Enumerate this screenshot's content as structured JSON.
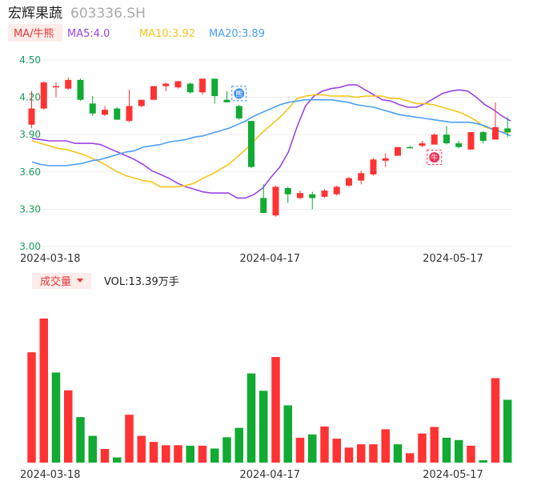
{
  "header": {
    "name": "宏辉果蔬",
    "code": "603336.SH"
  },
  "indicator_bar": {
    "ma_label": "MA/牛熊",
    "ma5": "MA5:4.0",
    "ma10": "MA10:3.92",
    "ma20": "MA20:3.89"
  },
  "volume_bar": {
    "label": "成交量",
    "vol": "VOL:13.39万手"
  },
  "colors": {
    "up": "#ff3333",
    "down": "#11aa33",
    "ma5": "#9b44e6",
    "ma10": "#f5c518",
    "ma20": "#4a9ff5",
    "axis_text": "#1a9a5a",
    "grid": "#eeeeee"
  },
  "chart_data": [
    {
      "type": "candlestick",
      "title": "",
      "ylim": [
        3.0,
        4.5
      ],
      "yticks": [
        "4.50",
        "4.20",
        "3.90",
        "3.60",
        "3.30",
        "3.00"
      ],
      "x_tick_labels": [
        "2024-03-18",
        "2024-04-17",
        "2024-05-17"
      ],
      "x_tick_index": [
        1,
        19,
        34
      ],
      "markers": [
        {
          "label": "熊",
          "index": 17,
          "icon": "bear-icon"
        },
        {
          "label": "牛",
          "index": 33,
          "icon": "bull-icon"
        }
      ],
      "candles": [
        {
          "o": 3.98,
          "h": 4.25,
          "l": 3.95,
          "c": 4.11
        },
        {
          "o": 4.11,
          "h": 4.33,
          "l": 4.1,
          "c": 4.32
        },
        {
          "o": 4.28,
          "h": 4.32,
          "l": 4.2,
          "c": 4.29
        },
        {
          "o": 4.27,
          "h": 4.36,
          "l": 4.26,
          "c": 4.34
        },
        {
          "o": 4.34,
          "h": 4.35,
          "l": 4.17,
          "c": 4.18
        },
        {
          "o": 4.15,
          "h": 4.21,
          "l": 4.05,
          "c": 4.07
        },
        {
          "o": 4.06,
          "h": 4.13,
          "l": 4.05,
          "c": 4.1
        },
        {
          "o": 4.11,
          "h": 4.12,
          "l": 4.02,
          "c": 4.02
        },
        {
          "o": 4.01,
          "h": 4.26,
          "l": 4.0,
          "c": 4.13
        },
        {
          "o": 4.13,
          "h": 4.18,
          "l": 4.12,
          "c": 4.18
        },
        {
          "o": 4.18,
          "h": 4.29,
          "l": 4.18,
          "c": 4.29
        },
        {
          "o": 4.29,
          "h": 4.32,
          "l": 4.25,
          "c": 4.31
        },
        {
          "o": 4.28,
          "h": 4.33,
          "l": 4.27,
          "c": 4.33
        },
        {
          "o": 4.31,
          "h": 4.32,
          "l": 4.23,
          "c": 4.24
        },
        {
          "o": 4.24,
          "h": 4.35,
          "l": 4.22,
          "c": 4.35
        },
        {
          "o": 4.35,
          "h": 4.35,
          "l": 4.15,
          "c": 4.21
        },
        {
          "o": 4.18,
          "h": 4.25,
          "l": 4.16,
          "c": 4.16
        },
        {
          "o": 4.13,
          "h": 4.14,
          "l": 4.02,
          "c": 4.03
        },
        {
          "o": 4.01,
          "h": 4.01,
          "l": 3.63,
          "c": 3.64
        },
        {
          "o": 3.39,
          "h": 3.5,
          "l": 3.27,
          "c": 3.27
        },
        {
          "o": 3.25,
          "h": 3.49,
          "l": 3.24,
          "c": 3.48
        },
        {
          "o": 3.47,
          "h": 3.48,
          "l": 3.35,
          "c": 3.42
        },
        {
          "o": 3.39,
          "h": 3.45,
          "l": 3.38,
          "c": 3.43
        },
        {
          "o": 3.42,
          "h": 3.44,
          "l": 3.3,
          "c": 3.39
        },
        {
          "o": 3.4,
          "h": 3.46,
          "l": 3.39,
          "c": 3.45
        },
        {
          "o": 3.42,
          "h": 3.49,
          "l": 3.41,
          "c": 3.48
        },
        {
          "o": 3.49,
          "h": 3.56,
          "l": 3.48,
          "c": 3.55
        },
        {
          "o": 3.53,
          "h": 3.61,
          "l": 3.5,
          "c": 3.59
        },
        {
          "o": 3.58,
          "h": 3.71,
          "l": 3.57,
          "c": 3.7
        },
        {
          "o": 3.69,
          "h": 3.75,
          "l": 3.64,
          "c": 3.71
        },
        {
          "o": 3.73,
          "h": 3.8,
          "l": 3.73,
          "c": 3.8
        },
        {
          "o": 3.8,
          "h": 3.81,
          "l": 3.79,
          "c": 3.79
        },
        {
          "o": 3.81,
          "h": 3.85,
          "l": 3.8,
          "c": 3.83
        },
        {
          "o": 3.82,
          "h": 3.91,
          "l": 3.82,
          "c": 3.9
        },
        {
          "o": 3.9,
          "h": 3.97,
          "l": 3.82,
          "c": 3.83
        },
        {
          "o": 3.83,
          "h": 3.85,
          "l": 3.79,
          "c": 3.8
        },
        {
          "o": 3.78,
          "h": 3.92,
          "l": 3.78,
          "c": 3.92
        },
        {
          "o": 3.92,
          "h": 3.93,
          "l": 3.83,
          "c": 3.85
        },
        {
          "o": 3.86,
          "h": 4.16,
          "l": 3.86,
          "c": 3.96
        },
        {
          "o": 3.95,
          "h": 4.04,
          "l": 3.88,
          "c": 3.92
        }
      ],
      "series": [
        {
          "name": "MA5",
          "values": [
            3.87,
            3.86,
            3.85,
            3.85,
            3.85,
            3.83,
            3.83,
            3.83,
            3.82,
            3.79,
            3.76,
            3.73,
            3.7,
            3.66,
            3.61,
            3.58,
            3.55,
            3.51,
            3.48,
            3.46,
            3.44,
            3.43,
            3.43,
            3.43,
            3.39,
            3.39,
            3.42,
            3.47,
            3.56,
            3.64,
            3.76,
            3.96,
            4.13,
            4.21,
            4.25,
            4.27,
            4.28,
            4.3,
            4.3,
            4.26,
            4.22,
            4.18,
            4.17,
            4.14,
            4.12,
            4.12,
            4.15,
            4.19,
            4.23,
            4.25,
            4.26,
            4.25,
            4.2,
            4.14,
            4.1,
            4.05,
            4.01
          ]
        },
        {
          "name": "MA10",
          "values": [
            3.85,
            3.83,
            3.81,
            3.79,
            3.78,
            3.76,
            3.74,
            3.71,
            3.68,
            3.64,
            3.6,
            3.57,
            3.55,
            3.53,
            3.52,
            3.48,
            3.48,
            3.48,
            3.49,
            3.51,
            3.55,
            3.58,
            3.62,
            3.66,
            3.72,
            3.78,
            3.85,
            3.92,
            3.98,
            4.04,
            4.11,
            4.19,
            4.21,
            4.22,
            4.22,
            4.21,
            4.21,
            4.21,
            4.2,
            4.21,
            4.21,
            4.21,
            4.19,
            4.19,
            4.17,
            4.15,
            4.15,
            4.14,
            4.12,
            4.1,
            4.08,
            4.05,
            4.01,
            3.96,
            3.94,
            3.92,
            3.92
          ]
        },
        {
          "name": "MA20",
          "values": [
            3.68,
            3.66,
            3.65,
            3.65,
            3.65,
            3.66,
            3.67,
            3.69,
            3.7,
            3.72,
            3.74,
            3.76,
            3.77,
            3.8,
            3.81,
            3.82,
            3.84,
            3.85,
            3.86,
            3.88,
            3.89,
            3.91,
            3.93,
            3.95,
            3.98,
            4.01,
            4.05,
            4.08,
            4.11,
            4.14,
            4.16,
            4.17,
            4.18,
            4.18,
            4.18,
            4.18,
            4.17,
            4.16,
            4.14,
            4.13,
            4.12,
            4.1,
            4.08,
            4.06,
            4.05,
            4.04,
            4.03,
            4.02,
            4.01,
            4.0,
            4.0,
            4.0,
            3.99,
            3.97,
            3.94,
            3.92,
            3.89
          ]
        }
      ]
    },
    {
      "type": "bar",
      "title": "",
      "x_tick_labels": [
        "2024-03-18",
        "2024-04-17",
        "2024-05-17"
      ],
      "volume_unit": "万手",
      "bars": [
        {
          "v": 23.5,
          "dir": "up"
        },
        {
          "v": 30.7,
          "dir": "up"
        },
        {
          "v": 19.2,
          "dir": "down"
        },
        {
          "v": 15.4,
          "dir": "up"
        },
        {
          "v": 9.7,
          "dir": "down"
        },
        {
          "v": 5.7,
          "dir": "down"
        },
        {
          "v": 2.9,
          "dir": "up"
        },
        {
          "v": 1.1,
          "dir": "down"
        },
        {
          "v": 10.2,
          "dir": "up"
        },
        {
          "v": 5.7,
          "dir": "up"
        },
        {
          "v": 4.4,
          "dir": "up"
        },
        {
          "v": 3.7,
          "dir": "up"
        },
        {
          "v": 3.7,
          "dir": "up"
        },
        {
          "v": 3.6,
          "dir": "down"
        },
        {
          "v": 3.6,
          "dir": "up"
        },
        {
          "v": 3.0,
          "dir": "down"
        },
        {
          "v": 5.4,
          "dir": "down"
        },
        {
          "v": 7.4,
          "dir": "down"
        },
        {
          "v": 19.0,
          "dir": "down"
        },
        {
          "v": 15.3,
          "dir": "down"
        },
        {
          "v": 22.5,
          "dir": "up"
        },
        {
          "v": 12.2,
          "dir": "down"
        },
        {
          "v": 5.3,
          "dir": "up"
        },
        {
          "v": 6.0,
          "dir": "down"
        },
        {
          "v": 7.7,
          "dir": "up"
        },
        {
          "v": 5.1,
          "dir": "up"
        },
        {
          "v": 3.2,
          "dir": "up"
        },
        {
          "v": 3.9,
          "dir": "up"
        },
        {
          "v": 3.9,
          "dir": "up"
        },
        {
          "v": 7.1,
          "dir": "up"
        },
        {
          "v": 3.9,
          "dir": "down"
        },
        {
          "v": 2.0,
          "dir": "up"
        },
        {
          "v": 6.2,
          "dir": "up"
        },
        {
          "v": 7.6,
          "dir": "up"
        },
        {
          "v": 5.3,
          "dir": "down"
        },
        {
          "v": 4.8,
          "dir": "down"
        },
        {
          "v": 3.6,
          "dir": "up"
        },
        {
          "v": 0.5,
          "dir": "down"
        },
        {
          "v": 18.0,
          "dir": "up"
        },
        {
          "v": 13.39,
          "dir": "down"
        }
      ]
    }
  ]
}
